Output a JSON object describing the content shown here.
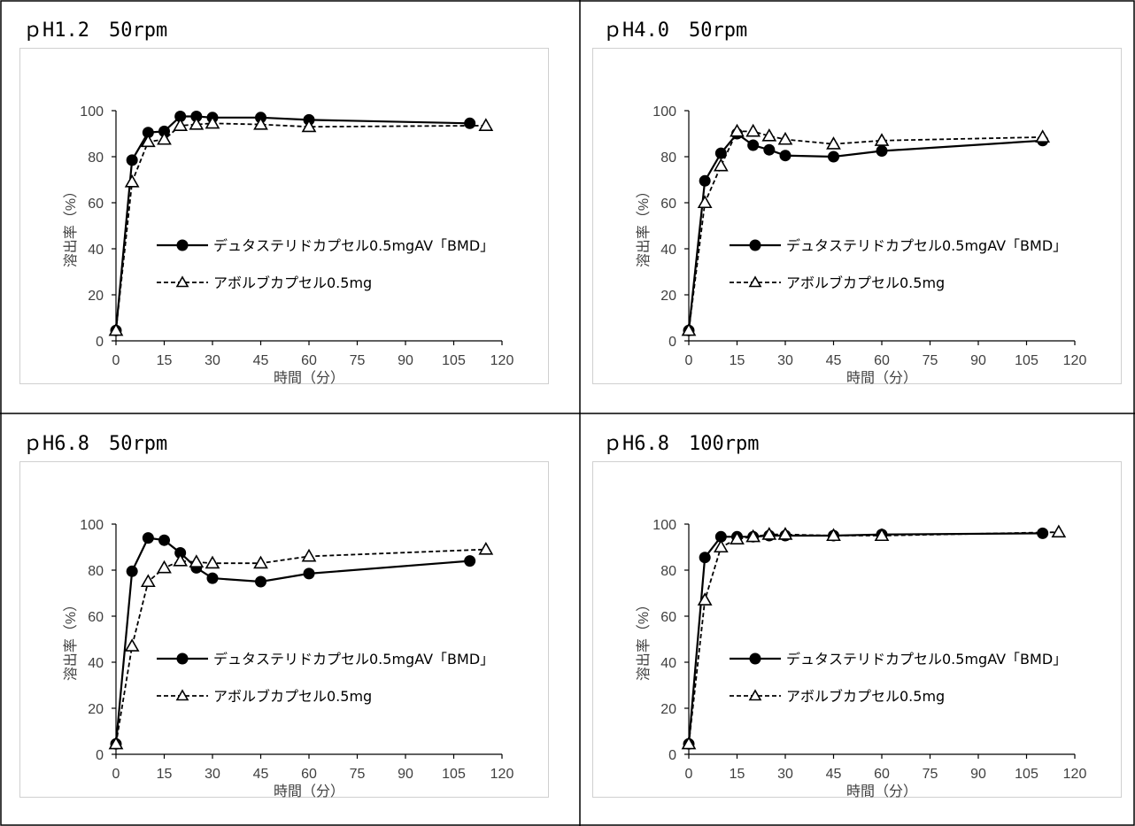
{
  "chart_data": [
    {
      "type": "line",
      "title": "ｐH1.2　50rpm",
      "xlabel": "時間（分）",
      "ylabel": "溶出率（%）",
      "xlim": [
        0,
        120
      ],
      "ylim": [
        0,
        100
      ],
      "xticks": [
        "0",
        "15",
        "30",
        "45",
        "60",
        "75",
        "90",
        "105",
        "120"
      ],
      "yticks": [
        "0",
        "20",
        "40",
        "60",
        "80",
        "100"
      ],
      "legend_position": "center-right",
      "series": [
        {
          "name": "デュタステリドカプセル0.5mgAV「BMD」",
          "x": [
            0,
            5,
            10,
            15,
            20,
            25,
            30,
            45,
            60,
            110
          ],
          "values": [
            4.5,
            78.5,
            90.5,
            91,
            97.5,
            97.5,
            97,
            97,
            96,
            94.5
          ]
        },
        {
          "name": "アボルブカプセル0.5mg",
          "x": [
            0,
            5,
            10,
            15,
            20,
            25,
            30,
            45,
            60,
            115
          ],
          "values": [
            4.5,
            69,
            86.5,
            87.5,
            93.5,
            94,
            94.5,
            94,
            93,
            93.5
          ]
        }
      ]
    },
    {
      "type": "line",
      "title": "ｐH4.0　50rpm",
      "xlabel": "時間（分）",
      "ylabel": "溶出率（%）",
      "xlim": [
        0,
        120
      ],
      "ylim": [
        0,
        100
      ],
      "xticks": [
        "0",
        "15",
        "30",
        "45",
        "60",
        "75",
        "90",
        "105",
        "120"
      ],
      "yticks": [
        "0",
        "20",
        "40",
        "60",
        "80",
        "100"
      ],
      "legend_position": "center-right",
      "series": [
        {
          "name": "デュタステリドカプセル0.5mgAV「BMD」",
          "x": [
            0,
            5,
            10,
            15,
            20,
            25,
            30,
            45,
            60,
            110
          ],
          "values": [
            4.5,
            69.5,
            81.5,
            90,
            85,
            83,
            80.5,
            80,
            82.5,
            87
          ]
        },
        {
          "name": "アボルブカプセル0.5mg",
          "x": [
            0,
            5,
            10,
            15,
            20,
            25,
            30,
            45,
            60,
            110
          ],
          "values": [
            4.5,
            60,
            76,
            91,
            91,
            89,
            87.5,
            85.5,
            87,
            88.5
          ]
        }
      ]
    },
    {
      "type": "line",
      "title": "ｐH6.8　50rpm",
      "xlabel": "時間（分）",
      "ylabel": "溶出率（%）",
      "xlim": [
        0,
        120
      ],
      "ylim": [
        0,
        100
      ],
      "xticks": [
        "0",
        "15",
        "30",
        "45",
        "60",
        "75",
        "90",
        "105",
        "120"
      ],
      "yticks": [
        "0",
        "20",
        "40",
        "60",
        "80",
        "100"
      ],
      "legend_position": "center-right",
      "series": [
        {
          "name": "デュタステリドカプセル0.5mgAV「BMD」",
          "x": [
            0,
            5,
            10,
            15,
            20,
            25,
            30,
            45,
            60,
            110
          ],
          "values": [
            4.5,
            79.5,
            94,
            93,
            87.5,
            81,
            76.5,
            75,
            78.5,
            84
          ]
        },
        {
          "name": "アボルブカプセル0.5mg",
          "x": [
            0,
            5,
            10,
            15,
            20,
            25,
            30,
            45,
            60,
            115
          ],
          "values": [
            4.5,
            47,
            75,
            81,
            84,
            83.5,
            83,
            83,
            86,
            89
          ]
        }
      ]
    },
    {
      "type": "line",
      "title": "ｐH6.8　100rpm",
      "xlabel": "時間（分）",
      "ylabel": "溶出率（%）",
      "xlim": [
        0,
        120
      ],
      "ylim": [
        0,
        100
      ],
      "xticks": [
        "0",
        "15",
        "30",
        "45",
        "60",
        "75",
        "90",
        "105",
        "120"
      ],
      "yticks": [
        "0",
        "20",
        "40",
        "60",
        "80",
        "100"
      ],
      "legend_position": "center-right",
      "series": [
        {
          "name": "デュタステリドカプセル0.5mgAV「BMD」",
          "x": [
            0,
            5,
            10,
            15,
            20,
            25,
            30,
            45,
            60,
            110
          ],
          "values": [
            4.5,
            85.5,
            94.5,
            94.5,
            94.5,
            95,
            95,
            95,
            95.5,
            96
          ]
        },
        {
          "name": "アボルブカプセル0.5mg",
          "x": [
            0,
            5,
            10,
            15,
            20,
            25,
            30,
            45,
            60,
            115
          ],
          "values": [
            4.5,
            67,
            90,
            93.5,
            94.5,
            95.5,
            95.5,
            95,
            95,
            96.5
          ]
        }
      ]
    }
  ]
}
